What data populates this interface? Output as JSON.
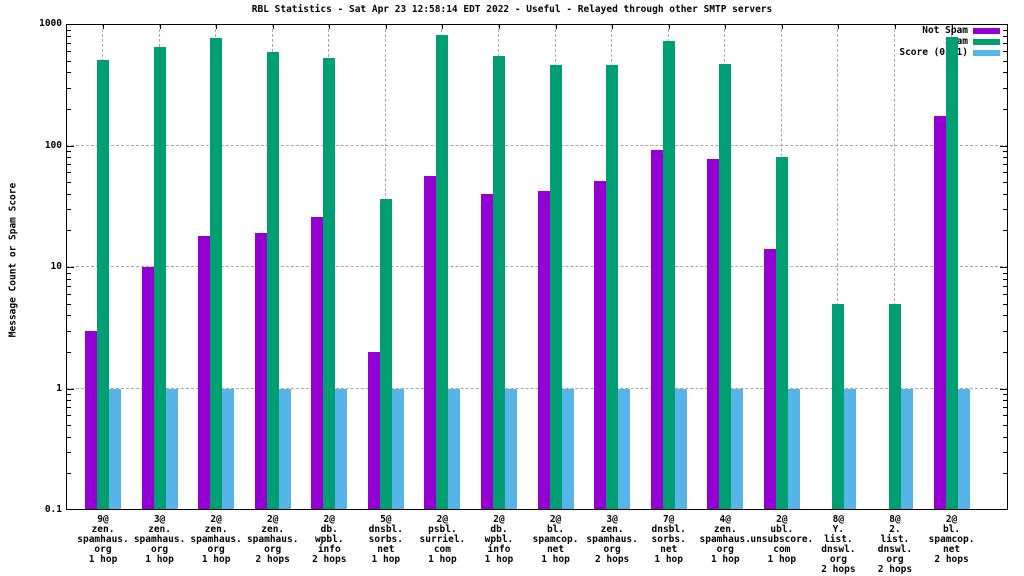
{
  "title": "RBL Statistics - Sat Apr 23 12:58:14 EDT 2022 - Useful - Relayed through other SMTP servers",
  "axes": {
    "ylabel": "Message Count or Spam Score",
    "ytick_labels": [
      "1000",
      "100",
      "10",
      "1",
      "0.1"
    ]
  },
  "legend": {
    "position": "top-right-inside",
    "items": [
      {
        "label": "Not Spam",
        "color": "#9400d3"
      },
      {
        "label": "Spam",
        "color": "#009e73"
      },
      {
        "label": "Score (0..1)",
        "color": "#56b4e9"
      }
    ]
  },
  "chart_data": {
    "type": "bar",
    "yscale": "log",
    "ylim": [
      0.1,
      1000
    ],
    "yticks": [
      1000,
      100,
      10,
      1,
      0.1
    ],
    "grid": true,
    "legend_position": "top-right",
    "title": "RBL Statistics - Sat Apr 23 12:58:14 EDT 2022 - Useful - Relayed through other SMTP servers",
    "xlabel": "",
    "ylabel": "Message Count or Spam Score",
    "categories": [
      [
        "9@",
        "zen.",
        "spamhaus.",
        "org",
        "1 hop"
      ],
      [
        "3@",
        "zen.",
        "spamhaus.",
        "org",
        "1 hop"
      ],
      [
        "2@",
        "zen.",
        "spamhaus.",
        "org",
        "1 hop"
      ],
      [
        "2@",
        "zen.",
        "spamhaus.",
        "org",
        "2 hops"
      ],
      [
        "2@",
        "db.",
        "wpbl.",
        "info",
        "2 hops"
      ],
      [
        "5@",
        "dnsbl.",
        "sorbs.",
        "net",
        "1 hop"
      ],
      [
        "2@",
        "psbl.",
        "surriel.",
        "com",
        "1 hop"
      ],
      [
        "2@",
        "db.",
        "wpbl.",
        "info",
        "1 hop"
      ],
      [
        "2@",
        "bl.",
        "spamcop.",
        "net",
        "1 hop"
      ],
      [
        "3@",
        "zen.",
        "spamhaus.",
        "org",
        "2 hops"
      ],
      [
        "7@",
        "dnsbl.",
        "sorbs.",
        "net",
        "1 hop"
      ],
      [
        "4@",
        "zen.",
        "spamhaus.",
        "org",
        "1 hop"
      ],
      [
        "2@",
        "ubl.",
        "unsubscore.",
        "com",
        "1 hop"
      ],
      [
        "8@",
        "Y.",
        "list.",
        "dnswl.",
        "org",
        "2 hops"
      ],
      [
        "8@",
        "2.",
        "list.",
        "dnswl.",
        "org",
        "2 hops"
      ],
      [
        "2@",
        "bl.",
        "spamcop.",
        "net",
        "2 hops"
      ]
    ],
    "series": [
      {
        "name": "Not Spam",
        "color": "#9400d3",
        "values": [
          3,
          10,
          18,
          19,
          26,
          2,
          56,
          40,
          42,
          51,
          92,
          77,
          14,
          null,
          null,
          175
        ]
      },
      {
        "name": "Spam",
        "color": "#009e73",
        "values": [
          510,
          650,
          770,
          590,
          530,
          36,
          810,
          550,
          460,
          460,
          720,
          470,
          80,
          5,
          5,
          780
        ]
      },
      {
        "name": "Score (0..1)",
        "color": "#56b4e9",
        "values": [
          1,
          1,
          1,
          1,
          1,
          1,
          1,
          1,
          1,
          1,
          1,
          1,
          1,
          1,
          1,
          1
        ]
      }
    ]
  }
}
